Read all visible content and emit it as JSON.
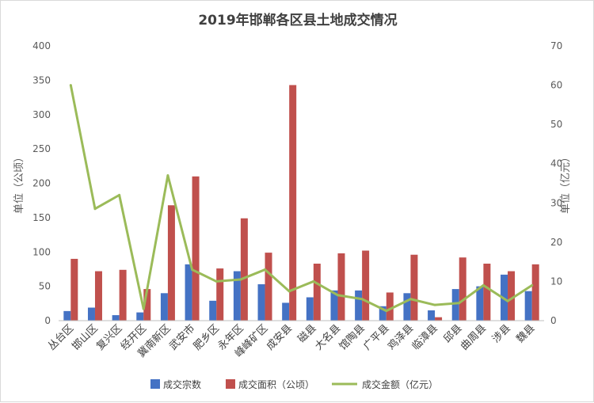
{
  "chart_data": {
    "type": "bar",
    "title": "2019年邯郸各区县土地成交情况",
    "categories": [
      "丛台区",
      "邯山区",
      "复兴区",
      "经开区",
      "冀南新区",
      "武安市",
      "肥乡区",
      "永年区",
      "峰峰矿区",
      "成安县",
      "磁县",
      "大名县",
      "馆陶县",
      "广平县",
      "鸡泽县",
      "临漳县",
      "邱县",
      "曲周县",
      "涉县",
      "魏县"
    ],
    "series": [
      {
        "name": "成交宗数",
        "axis": "left",
        "type": "bar",
        "color": "#4472C4",
        "values": [
          14,
          19,
          8,
          12,
          40,
          82,
          29,
          72,
          53,
          26,
          34,
          44,
          44,
          21,
          40,
          15,
          46,
          50,
          67,
          43
        ]
      },
      {
        "name": "成交面积（公顷）",
        "axis": "left",
        "type": "bar",
        "color": "#C0504D",
        "values": [
          90,
          72,
          74,
          46,
          168,
          210,
          76,
          149,
          99,
          343,
          83,
          98,
          102,
          41,
          96,
          5,
          92,
          83,
          72,
          82
        ]
      },
      {
        "name": "成交金额（亿元）",
        "axis": "right",
        "type": "line",
        "color": "#9BBB59",
        "values": [
          60,
          28.5,
          32,
          3,
          37,
          13,
          10,
          10.5,
          13,
          7.5,
          10,
          6.5,
          5.5,
          2.5,
          5.5,
          4,
          4.5,
          9,
          5,
          9
        ]
      }
    ],
    "ylabel": "单位（公顷）",
    "y2label": "单位（亿元）",
    "ylim": [
      0,
      400
    ],
    "y2lim": [
      0,
      70
    ],
    "yticks": [
      "0",
      "50",
      "100",
      "150",
      "200",
      "250",
      "300",
      "350",
      "400"
    ],
    "y2ticks": [
      "0",
      "10",
      "20",
      "30",
      "40",
      "50",
      "60",
      "70"
    ],
    "grid": false,
    "legend": "bottom"
  }
}
